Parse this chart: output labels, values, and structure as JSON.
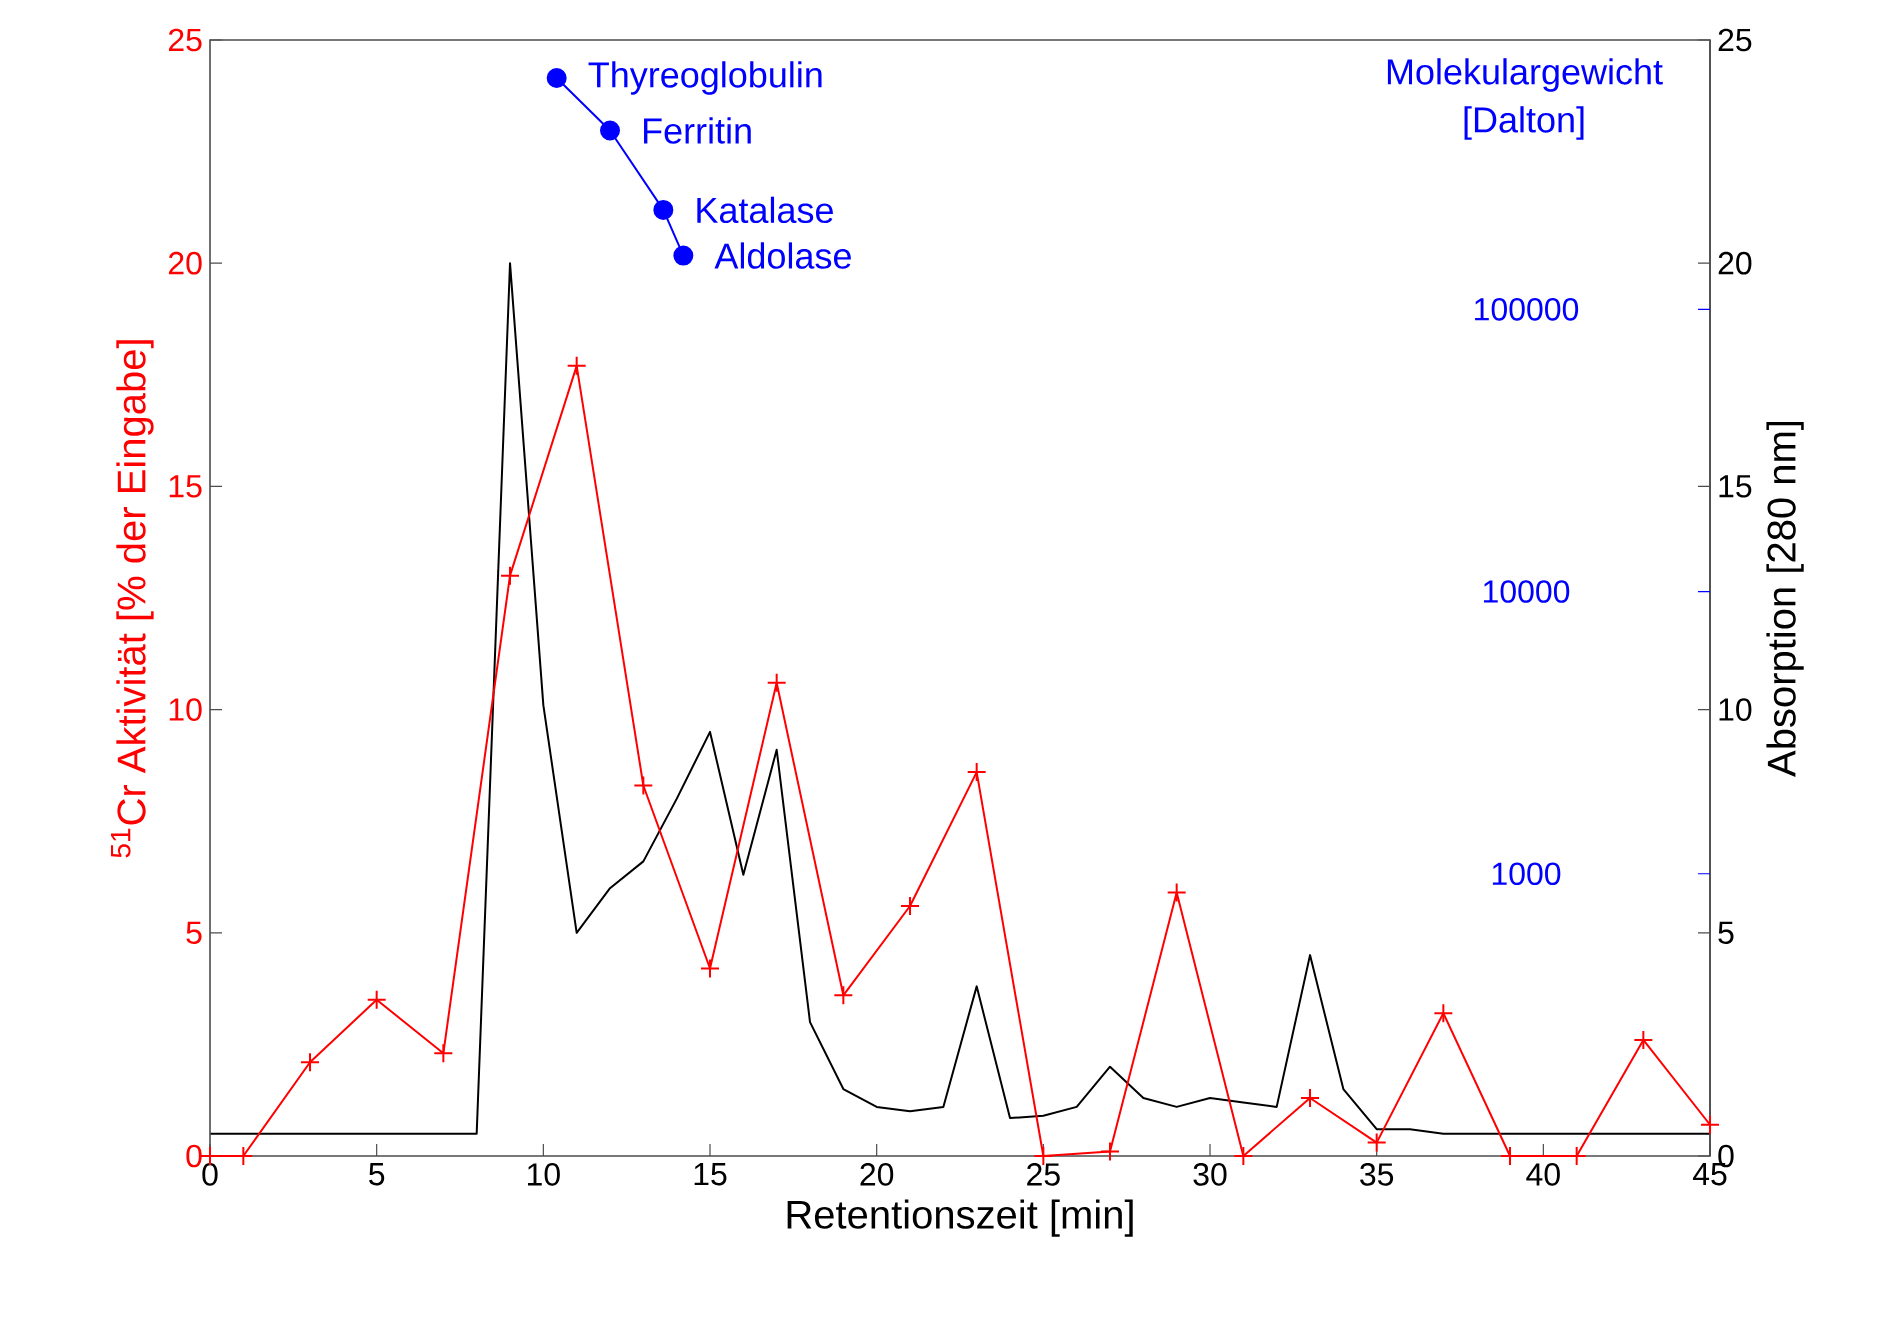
{
  "chart_data": {
    "type": "line",
    "xlabel": "Retentionszeit [min]",
    "ylabel": "$^{51}$Cr Aktivität [% der Eingabe]",
    "y2label": "Absorption [280 nm]",
    "y3label": "Molekulargewicht [Dalton]",
    "xlim": [
      0,
      45
    ],
    "xticks": [
      0,
      5,
      10,
      15,
      20,
      25,
      30,
      35,
      40,
      45
    ],
    "ylim": [
      0,
      25
    ],
    "yticks": [
      0,
      5,
      10,
      15,
      20,
      25
    ],
    "y2lim": [
      0,
      25
    ],
    "y2ticks": [
      0,
      5,
      10,
      15,
      20,
      25
    ],
    "y3lim": [
      100,
      900000
    ],
    "y3ticks": [
      1000,
      10000,
      100000
    ],
    "log": "y3",
    "series": [
      {
        "color": "#000000",
        "axis": "y2",
        "marker": "none",
        "x": [
          0,
          8,
          9,
          10,
          11,
          12,
          13,
          14,
          15,
          16,
          17,
          18,
          19,
          20,
          21,
          22,
          23,
          24,
          25,
          26,
          27,
          28,
          29,
          30,
          31,
          32,
          33,
          34,
          35,
          36,
          37,
          45
        ],
        "values": [
          0.5,
          0.5,
          20,
          10.1,
          5,
          6,
          6.6,
          8,
          9.5,
          6.3,
          9.1,
          3,
          1.5,
          1.1,
          1,
          1.1,
          3.8,
          0.85,
          0.9,
          1.1,
          2,
          1.3,
          1.1,
          1.3,
          1.2,
          1.1,
          4.5,
          1.5,
          0.6,
          0.6,
          0.5,
          0.5
        ]
      },
      {
        "color": "#ff0000",
        "axis": "y",
        "marker": "cross",
        "x": [
          0,
          1,
          3,
          5,
          7,
          9,
          11,
          13,
          15,
          17,
          19,
          21,
          23,
          25,
          27,
          29,
          31,
          33,
          35,
          37,
          39,
          41,
          43,
          45
        ],
        "values": [
          0,
          0,
          2.1,
          3.5,
          2.3,
          13,
          17.7,
          8.3,
          4.2,
          10.6,
          3.6,
          5.6,
          8.6,
          0,
          0.1,
          5.9,
          0,
          1.3,
          0.3,
          3.2,
          0,
          0,
          2.6,
          0.7
        ]
      },
      {
        "color": "#0000ff",
        "axis": "y3",
        "marker": "circle",
        "x": [
          10.4,
          12,
          13.6,
          14.2
        ],
        "values": [
          660000,
          430000,
          225000,
          155000
        ]
      }
    ],
    "annotations": [
      "Thyreoglobulin",
      "Ferritin",
      "Katalase",
      "Aldolase"
    ]
  }
}
